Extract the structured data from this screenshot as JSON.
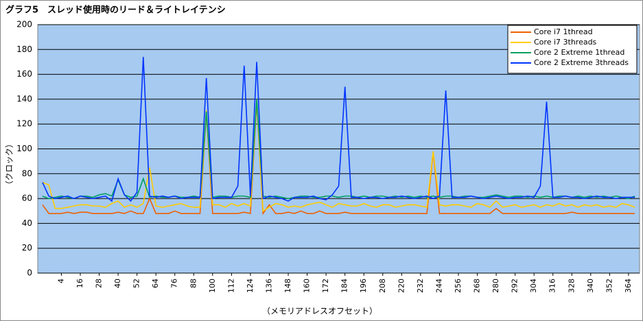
{
  "chart_data": {
    "type": "line",
    "title": "グラフ5　スレッド使用時のリード＆ライトレイテンシ",
    "x_label": "（メモリアドレスオフセット）",
    "y_label": "（クロック）",
    "x": [
      -8,
      -4,
      0,
      4,
      8,
      12,
      16,
      20,
      24,
      28,
      32,
      36,
      40,
      44,
      48,
      52,
      56,
      60,
      64,
      68,
      72,
      76,
      80,
      84,
      88,
      92,
      96,
      100,
      104,
      108,
      112,
      116,
      120,
      124,
      128,
      132,
      136,
      140,
      144,
      148,
      152,
      156,
      160,
      164,
      168,
      172,
      176,
      180,
      184,
      188,
      192,
      196,
      200,
      204,
      208,
      212,
      216,
      220,
      224,
      228,
      232,
      236,
      240,
      244,
      248,
      252,
      256,
      260,
      264,
      268,
      272,
      276,
      280,
      284,
      288,
      292,
      296,
      300,
      304,
      308,
      312,
      316,
      320,
      324,
      328,
      332,
      336,
      340,
      344,
      348,
      352,
      356,
      360,
      364,
      368
    ],
    "xlim": [
      -11,
      371
    ],
    "xticks": [
      4,
      16,
      28,
      40,
      52,
      64,
      76,
      88,
      100,
      112,
      124,
      136,
      148,
      160,
      172,
      184,
      196,
      208,
      220,
      232,
      244,
      256,
      268,
      280,
      292,
      304,
      316,
      328,
      340,
      352,
      364
    ],
    "ylim": [
      0,
      200
    ],
    "yticks": [
      0,
      20,
      40,
      60,
      80,
      100,
      120,
      140,
      160,
      180,
      200
    ],
    "grid": true,
    "legend": "top-right",
    "series": [
      {
        "name": "Core i7 1thread",
        "color": "#f06000",
        "values": [
          55,
          48,
          48,
          48,
          49,
          48,
          49,
          49,
          48,
          48,
          48,
          48,
          49,
          48,
          50,
          48,
          48,
          60,
          48,
          48,
          48,
          50,
          48,
          48,
          48,
          48,
          130,
          48,
          48,
          48,
          48,
          48,
          49,
          48,
          138,
          48,
          55,
          48,
          48,
          49,
          48,
          50,
          48,
          48,
          50,
          48,
          48,
          48,
          49,
          48,
          48,
          48,
          48,
          48,
          48,
          48,
          48,
          48,
          48,
          48,
          48,
          48,
          97,
          48,
          48,
          48,
          48,
          48,
          48,
          48,
          48,
          48,
          52,
          48,
          48,
          48,
          48,
          48,
          48,
          48,
          48,
          48,
          48,
          48,
          49,
          48,
          48,
          48,
          48,
          48,
          48,
          48,
          48,
          48,
          48
        ]
      },
      {
        "name": "Core i7 3threads",
        "color": "#ffcc00",
        "values": [
          73,
          71,
          52,
          52,
          53,
          54,
          55,
          55,
          54,
          54,
          53,
          56,
          58,
          53,
          55,
          53,
          56,
          85,
          54,
          53,
          54,
          55,
          56,
          54,
          53,
          53,
          131,
          55,
          55,
          53,
          56,
          54,
          56,
          54,
          140,
          50,
          53,
          56,
          55,
          53,
          54,
          53,
          55,
          56,
          57,
          55,
          53,
          56,
          55,
          54,
          54,
          56,
          54,
          53,
          55,
          55,
          53,
          54,
          55,
          55,
          54,
          53,
          98,
          55,
          54,
          55,
          55,
          54,
          53,
          56,
          55,
          53,
          58,
          53,
          54,
          55,
          53,
          54,
          55,
          53,
          55,
          54,
          56,
          54,
          55,
          53,
          55,
          54,
          55,
          53,
          54,
          53,
          56,
          55,
          53
        ]
      },
      {
        "name": "Core 2 Extreme 1thread",
        "color": "#00a060",
        "values": [
          62,
          60,
          61,
          62,
          61,
          60,
          62,
          62,
          61,
          63,
          64,
          62,
          75,
          63,
          61,
          62,
          76,
          61,
          62,
          61,
          61,
          62,
          61,
          61,
          62,
          61,
          130,
          61,
          62,
          62,
          61,
          62,
          62,
          61,
          140,
          62,
          61,
          62,
          61,
          60,
          61,
          62,
          62,
          61,
          61,
          62,
          62,
          61,
          62,
          62,
          61,
          62,
          61,
          62,
          62,
          61,
          62,
          61,
          62,
          61,
          62,
          61,
          62,
          61,
          62,
          62,
          61,
          62,
          62,
          61,
          61,
          62,
          63,
          62,
          61,
          62,
          62,
          61,
          62,
          61,
          62,
          61,
          62,
          62,
          61,
          62,
          61,
          62,
          61,
          62,
          61,
          62,
          61,
          60,
          62
        ]
      },
      {
        "name": "Core 2 Extreme 3threads",
        "color": "#0033ff",
        "values": [
          73,
          62,
          60,
          61,
          62,
          60,
          62,
          61,
          60,
          61,
          62,
          58,
          76,
          63,
          58,
          65,
          174,
          62,
          61,
          62,
          61,
          62,
          60,
          61,
          61,
          61,
          157,
          60,
          61,
          61,
          61,
          70,
          167,
          62,
          170,
          60,
          62,
          61,
          60,
          58,
          61,
          61,
          61,
          62,
          60,
          59,
          63,
          70,
          150,
          61,
          61,
          60,
          61,
          61,
          60,
          61,
          61,
          62,
          61,
          60,
          61,
          62,
          60,
          62,
          147,
          61,
          61,
          61,
          62,
          61,
          60,
          61,
          62,
          61,
          60,
          61,
          61,
          62,
          61,
          70,
          138,
          61,
          61,
          62,
          61,
          61,
          60,
          61,
          62,
          61,
          61,
          60,
          61,
          61,
          61
        ]
      }
    ]
  }
}
